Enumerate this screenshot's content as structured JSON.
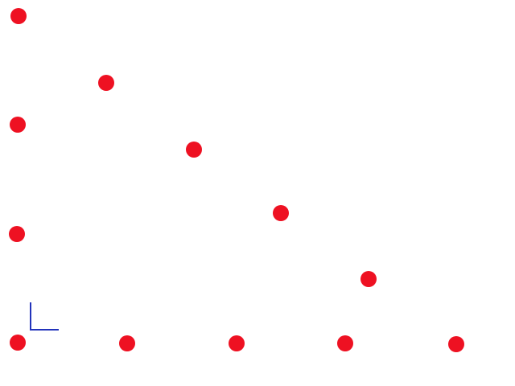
{
  "colors": {
    "background": "#ffffff",
    "dot": "#ee1122",
    "axis_marker": "#2233bb"
  },
  "icons": {
    "axis_marker": "axis-corner-icon"
  },
  "dots": [
    {
      "name": "dot-left-1"
    },
    {
      "name": "dot-left-2"
    },
    {
      "name": "dot-left-3"
    },
    {
      "name": "dot-left-4"
    },
    {
      "name": "dot-diagonal-1"
    },
    {
      "name": "dot-diagonal-2"
    },
    {
      "name": "dot-diagonal-3"
    },
    {
      "name": "dot-diagonal-4"
    },
    {
      "name": "dot-bottom-1"
    },
    {
      "name": "dot-bottom-2"
    },
    {
      "name": "dot-bottom-3"
    },
    {
      "name": "dot-bottom-4"
    }
  ]
}
